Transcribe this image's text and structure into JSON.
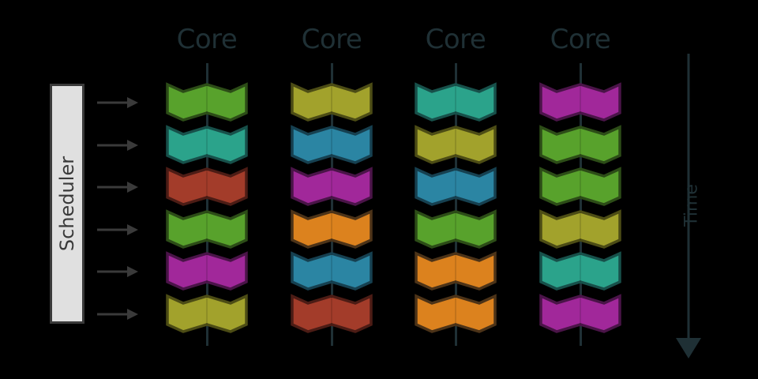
{
  "diagram": {
    "scheduler": {
      "label": "Scheduler",
      "arrow_count": 6
    },
    "time_axis": {
      "label": "Time",
      "direction": "down"
    },
    "palette": {
      "green": {
        "fill": "#58a22c",
        "stroke": "#2c4c17"
      },
      "teal": {
        "fill": "#2ba38b",
        "stroke": "#17504a"
      },
      "red": {
        "fill": "#a33c2a",
        "stroke": "#4c1c15"
      },
      "magenta": {
        "fill": "#a1289a",
        "stroke": "#4a1448"
      },
      "olive": {
        "fill": "#a2a22c",
        "stroke": "#4c4c15"
      },
      "blue": {
        "fill": "#2b85a3",
        "stroke": "#164050"
      },
      "orange": {
        "fill": "#dc821e",
        "stroke": "#4c3318"
      }
    },
    "line_color": "#1f3035",
    "cores": [
      {
        "label": "Core",
        "tasks": [
          "green",
          "teal",
          "red",
          "green",
          "magenta",
          "olive"
        ]
      },
      {
        "label": "Core",
        "tasks": [
          "olive",
          "blue",
          "magenta",
          "orange",
          "blue",
          "red"
        ]
      },
      {
        "label": "Core",
        "tasks": [
          "teal",
          "olive",
          "blue",
          "green",
          "orange",
          "orange"
        ]
      },
      {
        "label": "Core",
        "tasks": [
          "magenta",
          "green",
          "green",
          "olive",
          "teal",
          "magenta"
        ]
      }
    ]
  }
}
